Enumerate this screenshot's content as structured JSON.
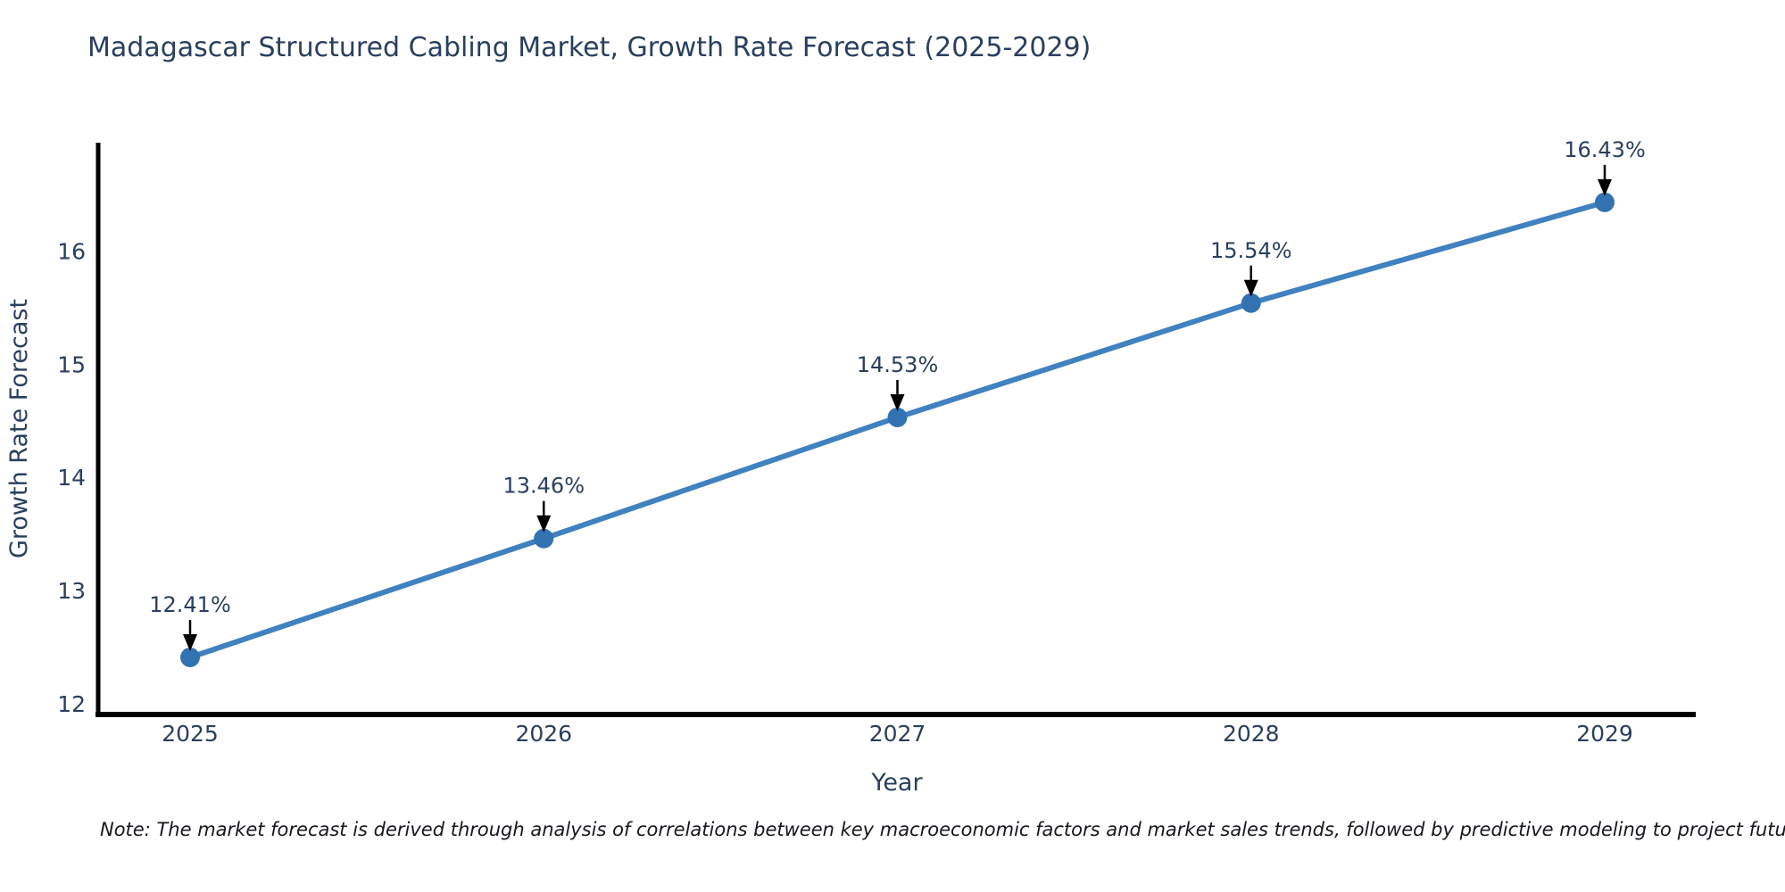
{
  "title": "Madagascar Structured Cabling Market, Growth Rate Forecast (2025-2029)",
  "note": "Note: The market forecast is derived through analysis of correlations between key macroeconomic factors and market sales trends, followed by predictive modeling to project future sales",
  "chart_data": {
    "type": "line",
    "title": "Madagascar Structured Cabling Market, Growth Rate Forecast (2025-2029)",
    "xlabel": "Year",
    "ylabel": "Growth Rate Forecast",
    "categories": [
      "2025",
      "2026",
      "2027",
      "2028",
      "2029"
    ],
    "series": [
      {
        "name": "Growth Rate Forecast",
        "values": [
          12.41,
          13.46,
          14.53,
          15.54,
          16.43
        ],
        "point_labels": [
          "12.41%",
          "13.46%",
          "14.53%",
          "15.54%",
          "16.43%"
        ]
      }
    ],
    "yticks": [
      12,
      13,
      14,
      15,
      16
    ],
    "ylim": [
      11.91,
      17.05
    ],
    "grid": false,
    "legend_position": "none",
    "annotations_have_arrows": true,
    "colors": {
      "line": "#4181c0",
      "marker": "#3372b0",
      "arrow": "#000000",
      "axis_line": "#000000",
      "label_text": "#2a3f5f",
      "note_text": "#16181d",
      "background": "#ffffff"
    }
  }
}
